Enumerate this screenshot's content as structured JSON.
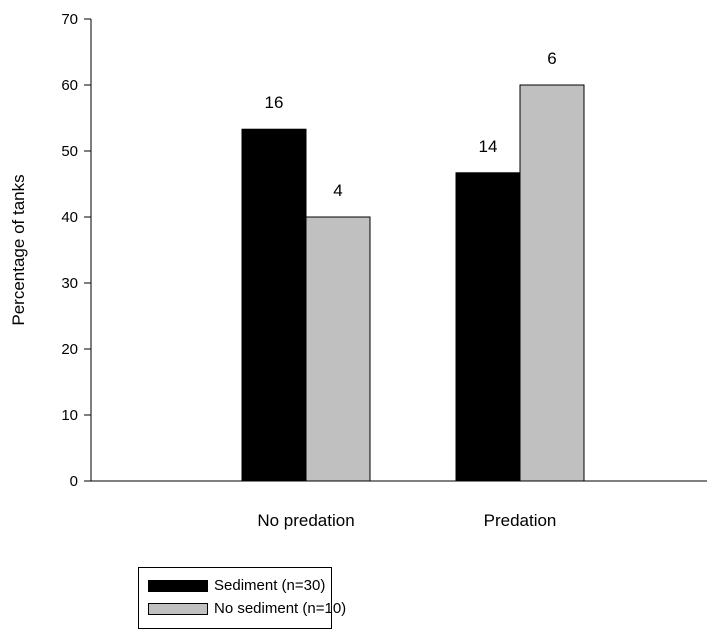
{
  "chart_data": {
    "type": "bar",
    "ylabel": "Percentage of tanks",
    "xlabel": "",
    "ylim": [
      0,
      70
    ],
    "yticks": [
      0,
      10,
      20,
      30,
      40,
      50,
      60,
      70
    ],
    "categories": [
      "No predation",
      "Predation"
    ],
    "series": [
      {
        "name": "Sediment (n=30)",
        "values": [
          53.3,
          46.7
        ],
        "labels": [
          "16",
          "14"
        ],
        "color": "#000000"
      },
      {
        "name": "No sediment (n=10)",
        "values": [
          40,
          60
        ],
        "labels": [
          "4",
          "6"
        ],
        "color": "#c0c0c0"
      }
    ],
    "grid": false,
    "legend_position": "bottom-left"
  }
}
